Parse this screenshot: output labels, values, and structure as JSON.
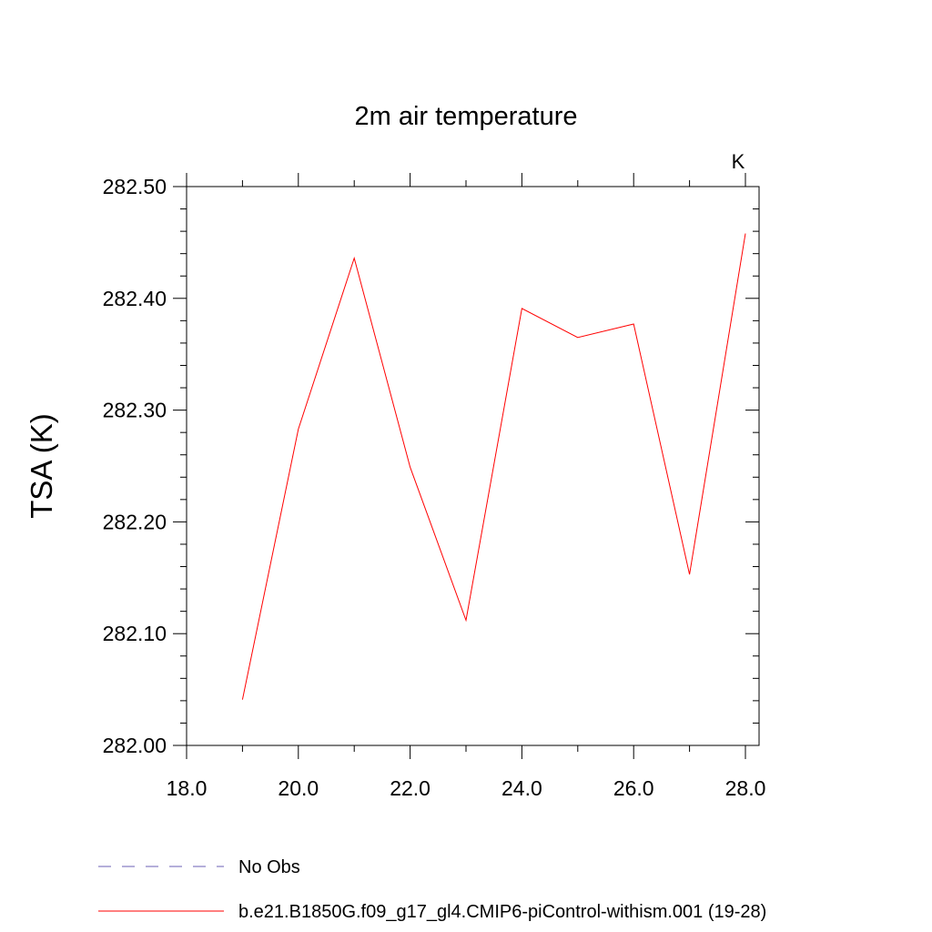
{
  "chart_data": {
    "type": "line",
    "title": "2m air temperature",
    "xlabel": "",
    "ylabel": "TSA  (K)",
    "units_label": "K",
    "xlim": [
      18.0,
      28.0
    ],
    "ylim": [
      282.0,
      282.5
    ],
    "x_ticks": [
      "18.0",
      "20.0",
      "22.0",
      "24.0",
      "26.0",
      "28.0"
    ],
    "y_ticks": [
      "282.00",
      "282.10",
      "282.20",
      "282.30",
      "282.40",
      "282.50"
    ],
    "grid": false,
    "legend_position": "bottom",
    "series": [
      {
        "name": "No Obs",
        "color": "#6b5fb5",
        "style": "dashed",
        "x": [],
        "y": []
      },
      {
        "name": "b.e21.B1850G.f09_g17_gl4.CMIP6-piControl-withism.001 (19-28)",
        "color": "#ff0000",
        "style": "solid",
        "x": [
          19,
          20,
          21,
          22,
          23,
          24,
          25,
          26,
          27,
          28
        ],
        "y": [
          282.041,
          282.283,
          282.436,
          282.249,
          282.112,
          282.391,
          282.365,
          282.377,
          282.153,
          282.458
        ]
      }
    ]
  }
}
